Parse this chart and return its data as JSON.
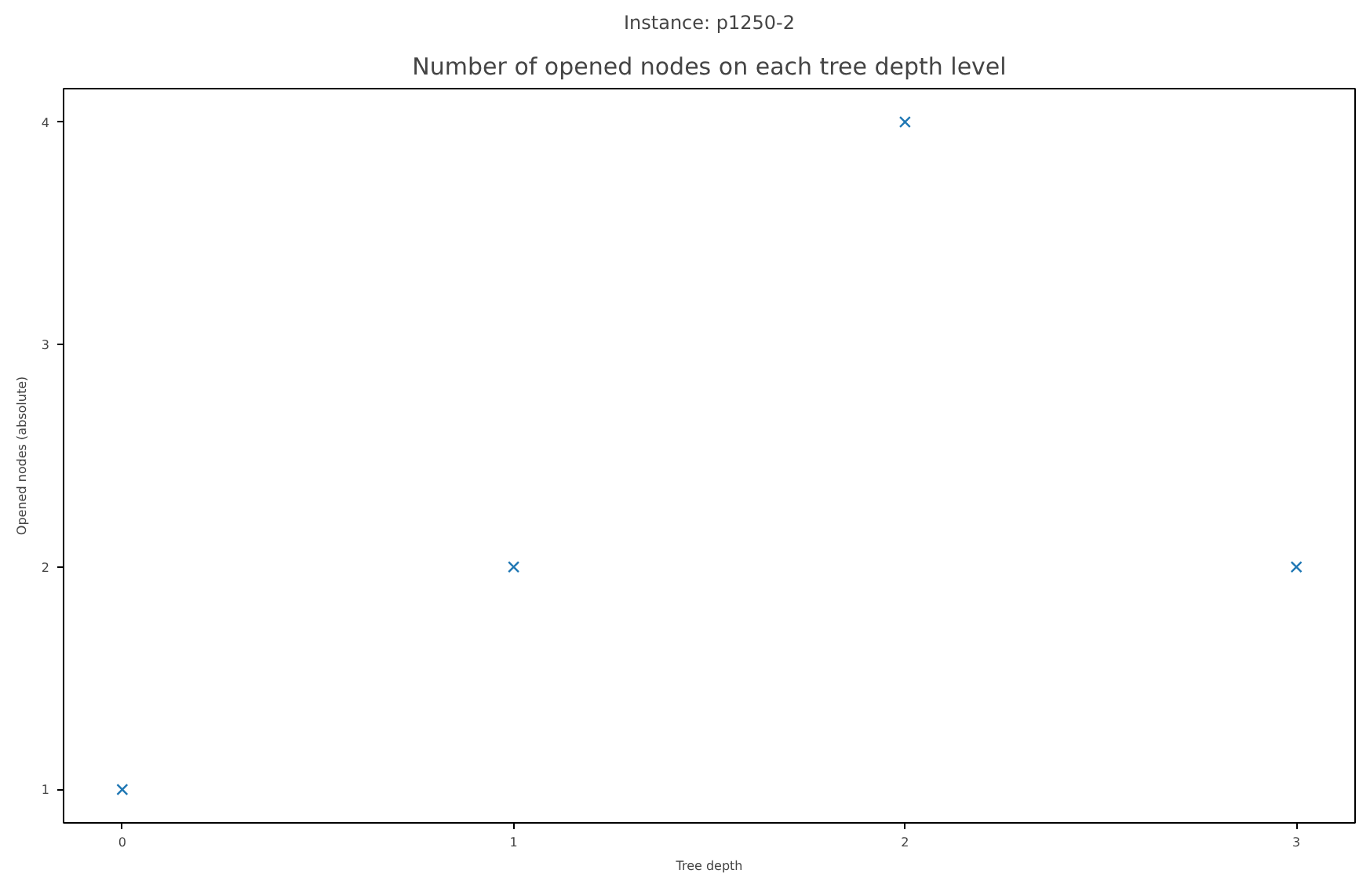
{
  "chart_data": {
    "type": "scatter",
    "title": "Instance: p1250-2",
    "subtitle": "Number of opened nodes on each tree depth level",
    "xlabel": "Tree depth",
    "ylabel": "Opened nodes (absolute)",
    "x": [
      0,
      1,
      2,
      3
    ],
    "series": [
      {
        "color": "#1f77b4",
        "values": [
          1,
          2,
          4,
          2
        ]
      }
    ],
    "xlim": [
      -0.15,
      3.15
    ],
    "ylim": [
      0.85,
      4.15
    ],
    "xticks": [
      0,
      1,
      2,
      3
    ],
    "yticks": [
      1,
      2,
      3,
      4
    ],
    "marker": "cross",
    "grid": false
  }
}
